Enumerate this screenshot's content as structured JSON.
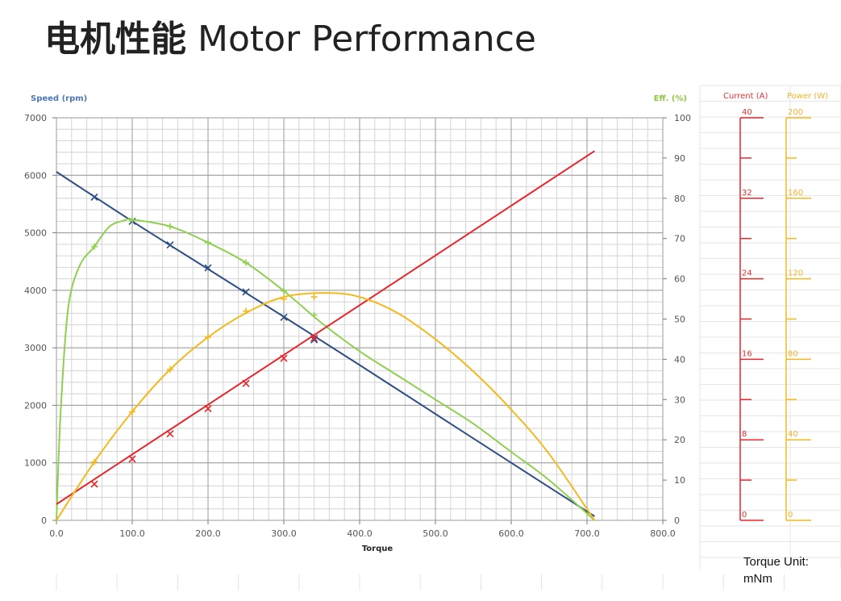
{
  "page": {
    "title_cn": "电机性能",
    "title_en": "Motor Performance"
  },
  "unit_note": {
    "line1": "Torque Unit:",
    "line2": "mNm"
  },
  "colors": {
    "speed": "#2e4f86",
    "efficiency": "#8ed04f",
    "current": "#e8262b",
    "power": "#f3b91d",
    "speed_label": "#4a78b8",
    "eff_label": "#8ec63f",
    "current_label": "#e03232",
    "power_label": "#f0b42a"
  },
  "chart_data": {
    "type": "line",
    "xlabel": "Torque",
    "xlim": [
      0,
      800
    ],
    "xticks": [
      "0.0",
      "100.0",
      "200.0",
      "300.0",
      "400.0",
      "500.0",
      "600.0",
      "700.0",
      "800.0"
    ],
    "y_left": {
      "label": "Speed (rpm)",
      "lim": [
        0,
        7000
      ],
      "ticks": [
        "0",
        "1000",
        "2000",
        "3000",
        "4000",
        "5000",
        "6000",
        "7000"
      ]
    },
    "y_right": {
      "label": "Eff. (%)",
      "lim": [
        0,
        100
      ],
      "ticks": [
        "0",
        "10",
        "20",
        "30",
        "40",
        "50",
        "60",
        "70",
        "80",
        "90",
        "100"
      ]
    },
    "current_scale": {
      "label": "Current (A)",
      "lim": [
        0,
        40
      ],
      "ticks": [
        "0",
        "8",
        "16",
        "24",
        "32",
        "40"
      ]
    },
    "power_scale": {
      "label": "Power (W)",
      "lim": [
        0,
        200
      ],
      "ticks": [
        "0",
        "40",
        "80",
        "120",
        "160",
        "200"
      ]
    },
    "grid": true,
    "series": [
      {
        "name": "Speed (rpm)",
        "axis": "speed",
        "color_key": "speed",
        "curve": {
          "x": [
            0,
            100,
            200,
            300,
            400,
            500,
            600,
            710
          ],
          "y": [
            6060,
            5200,
            4370,
            3540,
            2700,
            1850,
            1000,
            70
          ]
        },
        "markers": {
          "shape": "x",
          "x": [
            50,
            100,
            150,
            200,
            250,
            300,
            340
          ],
          "y": [
            5620,
            5200,
            4790,
            4390,
            3970,
            3530,
            3140
          ]
        }
      },
      {
        "name": "Eff. (%)",
        "axis": "efficiency",
        "color_key": "efficiency",
        "curve": {
          "x": [
            0,
            5,
            15,
            30,
            50,
            70,
            90,
            100,
            150,
            200,
            250,
            300,
            350,
            400,
            450,
            500,
            550,
            600,
            650,
            710
          ],
          "y": [
            0,
            25,
            52,
            63,
            68,
            73,
            74.5,
            74.7,
            73,
            69,
            64,
            57,
            49,
            42,
            36,
            30,
            24,
            17,
            10,
            0
          ]
        },
        "markers": {
          "shape": "+",
          "x": [
            50,
            100,
            150,
            200,
            250,
            300,
            340
          ],
          "y": [
            68,
            74.5,
            73,
            69,
            64,
            57,
            51
          ]
        }
      },
      {
        "name": "Current (A)",
        "axis": "current",
        "color_key": "current",
        "curve": {
          "x": [
            0,
            710
          ],
          "y": [
            1.6,
            36.7
          ]
        },
        "markers": {
          "shape": "x",
          "x": [
            50,
            100,
            150,
            200,
            250,
            300,
            340
          ],
          "y": [
            3.6,
            6.1,
            8.6,
            11.1,
            13.6,
            16.1,
            18.1
          ]
        }
      },
      {
        "name": "Power (W)",
        "axis": "power",
        "color_key": "power",
        "curve": {
          "x": [
            0,
            50,
            100,
            150,
            200,
            250,
            300,
            355,
            400,
            450,
            500,
            550,
            600,
            650,
            710
          ],
          "y": [
            0,
            29,
            54,
            75,
            91,
            103,
            111,
            113,
            111,
            103,
            90,
            74,
            55,
            33,
            0
          ]
        },
        "markers": {
          "shape": "+",
          "x": [
            50,
            100,
            150,
            200,
            250,
            300,
            340
          ],
          "y": [
            29,
            54,
            75,
            91,
            104,
            110,
            111
          ]
        }
      }
    ]
  }
}
